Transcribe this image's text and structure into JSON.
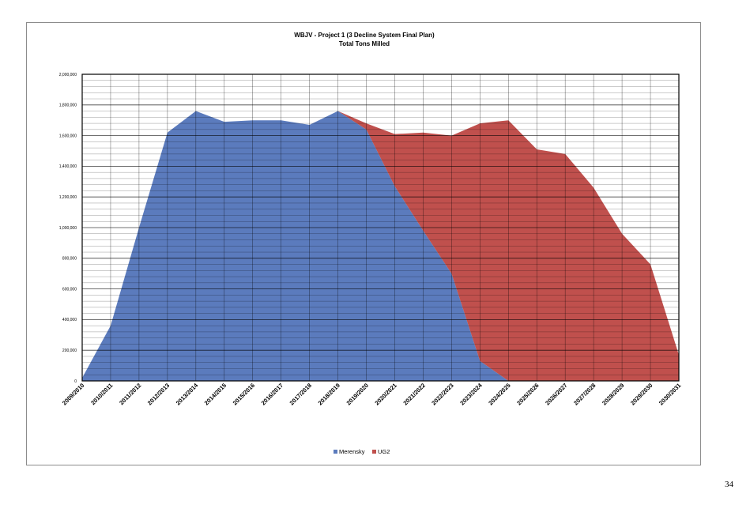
{
  "page_number": "34",
  "chart_data": {
    "type": "area",
    "stacked": true,
    "title": "WBJV - Project 1  (3 Decline System Final Plan)",
    "subtitle": "Total Tons Milled",
    "xlabel": "",
    "ylabel": "",
    "ylim": [
      0,
      2000000
    ],
    "ytick_step": 200000,
    "yticks": [
      "0",
      "200,000",
      "400,000",
      "600,000",
      "800,000",
      "1,000,000",
      "1,200,000",
      "1,400,000",
      "1,600,000",
      "1,800,000",
      "2,000,000"
    ],
    "grid": true,
    "legend_position": "bottom",
    "categories": [
      "2009/2010",
      "2010/2011",
      "2011/2012",
      "2012/2013",
      "2013/2014",
      "2014/2015",
      "2015/2016",
      "2016/2017",
      "2017/2018",
      "2018/2019",
      "2019/2020",
      "2020/2021",
      "2021/2022",
      "2022/2023",
      "2023/2024",
      "2024/2025",
      "2025/2026",
      "2026/2027",
      "2027/2028",
      "2028/2029",
      "2029/2030",
      "2030/2031"
    ],
    "series": [
      {
        "name": "Merensky",
        "color": "#5b7bbd",
        "values": [
          20000,
          360000,
          1000000,
          1620000,
          1760000,
          1690000,
          1700000,
          1700000,
          1670000,
          1760000,
          1640000,
          1270000,
          980000,
          700000,
          130000,
          0,
          0,
          0,
          0,
          0,
          0,
          0
        ]
      },
      {
        "name": "UG2",
        "color": "#c0504d",
        "values": [
          0,
          0,
          0,
          0,
          0,
          0,
          0,
          0,
          0,
          0,
          40000,
          340000,
          640000,
          900000,
          1550000,
          1700000,
          1510000,
          1480000,
          1260000,
          960000,
          760000,
          170000
        ]
      }
    ]
  }
}
